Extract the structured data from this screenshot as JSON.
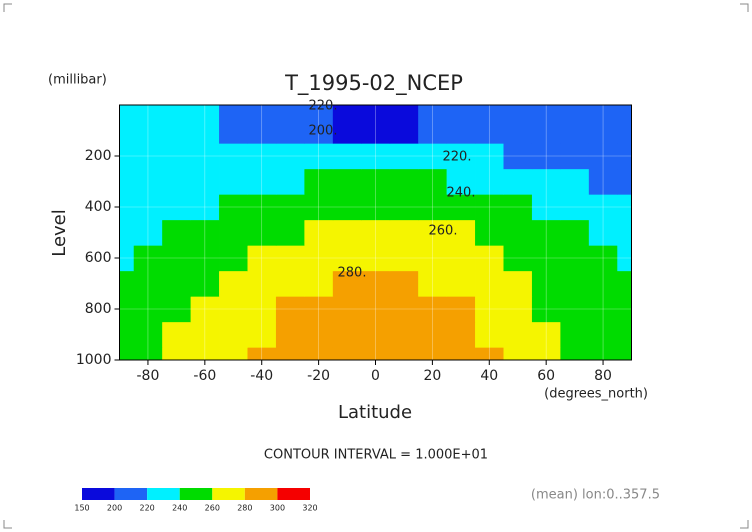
{
  "chart_data": {
    "type": "contour",
    "title": "T_1995-02_NCEP",
    "y_unit": "(millibar)",
    "ylabel": "Level",
    "xlabel": "Latitude",
    "x_unit": "(degrees_north)",
    "contour_note": "CONTOUR INTERVAL = 1.000E+01",
    "footnote": "(mean) lon:0..357.5",
    "x": [
      -90,
      -80,
      -70,
      -60,
      -50,
      -40,
      -30,
      -20,
      -10,
      0,
      10,
      20,
      30,
      40,
      50,
      60,
      70,
      80,
      90
    ],
    "y": [
      1000,
      900,
      800,
      700,
      600,
      500,
      400,
      300,
      200,
      100
    ],
    "z": [
      [
        255,
        258,
        262,
        268,
        275,
        283,
        288,
        292,
        294,
        295,
        295,
        293,
        289,
        282,
        275,
        265,
        255,
        252,
        250
      ],
      [
        252,
        256,
        260,
        266,
        272,
        279,
        285,
        289,
        291,
        292,
        292,
        290,
        285,
        278,
        270,
        262,
        255,
        250,
        248
      ],
      [
        248,
        252,
        256,
        262,
        268,
        274,
        280,
        284,
        286,
        287,
        287,
        285,
        280,
        274,
        266,
        258,
        252,
        247,
        245
      ],
      [
        244,
        247,
        251,
        256,
        262,
        268,
        274,
        278,
        280,
        281,
        281,
        279,
        275,
        268,
        261,
        254,
        248,
        244,
        242
      ],
      [
        239,
        242,
        246,
        251,
        256,
        262,
        267,
        271,
        273,
        274,
        274,
        272,
        268,
        262,
        256,
        250,
        245,
        241,
        239
      ],
      [
        233,
        235,
        240,
        245,
        250,
        255,
        259,
        263,
        265,
        266,
        266,
        264,
        260,
        255,
        249,
        244,
        240,
        237,
        235
      ],
      [
        226,
        228,
        232,
        237,
        242,
        246,
        250,
        253,
        255,
        256,
        256,
        254,
        250,
        245,
        240,
        236,
        233,
        230,
        228
      ],
      [
        222,
        223,
        225,
        228,
        232,
        236,
        239,
        241,
        242,
        243,
        243,
        241,
        237,
        232,
        228,
        224,
        221,
        219,
        218
      ],
      [
        226,
        226,
        225,
        224,
        224,
        225,
        226,
        227,
        228,
        228,
        228,
        227,
        224,
        220,
        217,
        215,
        214,
        214,
        214
      ],
      [
        226,
        226,
        225,
        222,
        215,
        212,
        207,
        202,
        199,
        198,
        199,
        202,
        206,
        210,
        212,
        213,
        214,
        216,
        218
      ]
    ],
    "xlim": [
      -90,
      90
    ],
    "ylim": [
      1000,
      0
    ],
    "xticks": [
      -80,
      -60,
      -40,
      -20,
      0,
      20,
      40,
      60,
      80
    ],
    "yticks": [
      200,
      400,
      600,
      800,
      1000
    ],
    "grid": true,
    "levels": [
      150,
      200,
      220,
      240,
      260,
      280,
      300,
      320
    ],
    "colors": [
      "#0a0adc",
      "#1e64f5",
      "#00f0ff",
      "#00dc00",
      "#f5f500",
      "#f5a000",
      "#f50000"
    ],
    "contour_labels": [
      "220.",
      "200.",
      "220.",
      "240.",
      "260.",
      "280."
    ]
  }
}
